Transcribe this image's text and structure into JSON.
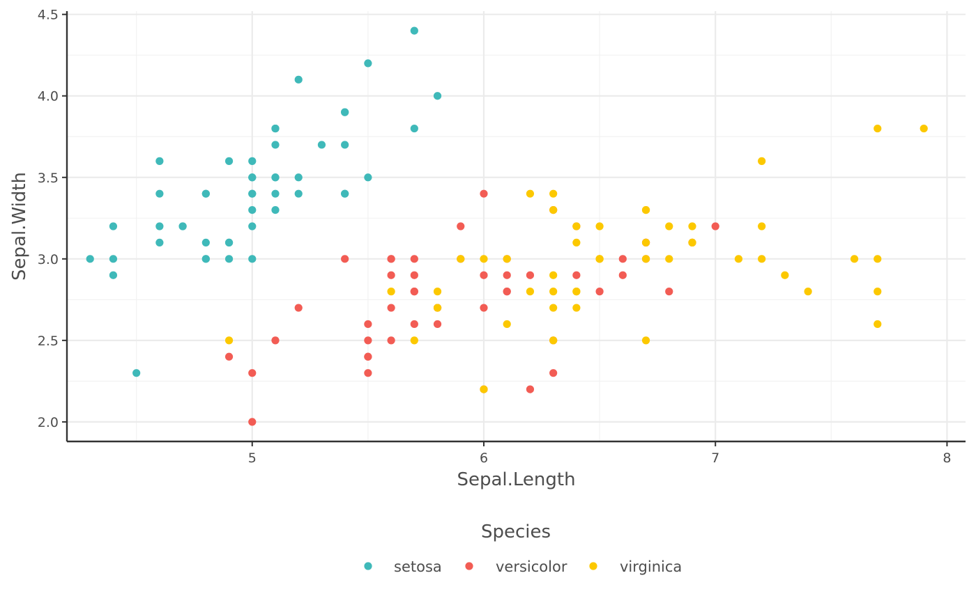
{
  "colors": {
    "setosa": "#3fb9b9",
    "versicolor": "#f25c54",
    "virginica": "#fcc800",
    "grid_major": "#ebebeb",
    "grid_minor": "#f2f2f2",
    "axis": "#333333"
  },
  "chart_data": {
    "type": "scatter",
    "title": "",
    "xlabel": "Sepal.Length",
    "ylabel": "Sepal.Width",
    "xlim": [
      4.2,
      8.08
    ],
    "ylim": [
      1.88,
      4.52
    ],
    "x_ticks": [
      5,
      6,
      7,
      8
    ],
    "x_tick_labels": [
      "5",
      "6",
      "7",
      "8"
    ],
    "y_ticks": [
      2.0,
      2.5,
      3.0,
      3.5,
      4.0,
      4.5
    ],
    "y_tick_labels": [
      "2.0",
      "2.5",
      "3.0",
      "3.5",
      "4.0",
      "4.5"
    ],
    "grid": true,
    "legend": {
      "title": "Species",
      "position": "bottom",
      "entries": [
        "setosa",
        "versicolor",
        "virginica"
      ]
    },
    "series": [
      {
        "name": "setosa",
        "color_key": "setosa",
        "points": [
          [
            5.1,
            3.5
          ],
          [
            4.9,
            3.0
          ],
          [
            4.7,
            3.2
          ],
          [
            4.6,
            3.1
          ],
          [
            5.0,
            3.6
          ],
          [
            5.4,
            3.9
          ],
          [
            4.6,
            3.4
          ],
          [
            5.0,
            3.4
          ],
          [
            4.4,
            2.9
          ],
          [
            4.9,
            3.1
          ],
          [
            5.4,
            3.7
          ],
          [
            4.8,
            3.4
          ],
          [
            4.8,
            3.0
          ],
          [
            4.3,
            3.0
          ],
          [
            5.8,
            4.0
          ],
          [
            5.7,
            4.4
          ],
          [
            5.4,
            3.9
          ],
          [
            5.1,
            3.5
          ],
          [
            5.7,
            3.8
          ],
          [
            5.1,
            3.8
          ],
          [
            5.4,
            3.4
          ],
          [
            5.1,
            3.7
          ],
          [
            4.6,
            3.6
          ],
          [
            5.1,
            3.3
          ],
          [
            4.8,
            3.4
          ],
          [
            5.0,
            3.0
          ],
          [
            5.0,
            3.4
          ],
          [
            5.2,
            3.5
          ],
          [
            5.2,
            3.4
          ],
          [
            4.7,
            3.2
          ],
          [
            4.8,
            3.1
          ],
          [
            5.4,
            3.4
          ],
          [
            5.2,
            4.1
          ],
          [
            5.5,
            4.2
          ],
          [
            4.9,
            3.1
          ],
          [
            5.0,
            3.2
          ],
          [
            5.5,
            3.5
          ],
          [
            4.9,
            3.6
          ],
          [
            4.4,
            3.0
          ],
          [
            5.1,
            3.4
          ],
          [
            5.0,
            3.5
          ],
          [
            4.5,
            2.3
          ],
          [
            4.4,
            3.2
          ],
          [
            5.0,
            3.5
          ],
          [
            5.1,
            3.8
          ],
          [
            4.8,
            3.0
          ],
          [
            5.1,
            3.8
          ],
          [
            4.6,
            3.2
          ],
          [
            5.3,
            3.7
          ],
          [
            5.0,
            3.3
          ]
        ]
      },
      {
        "name": "versicolor",
        "color_key": "versicolor",
        "points": [
          [
            7.0,
            3.2
          ],
          [
            6.4,
            3.2
          ],
          [
            6.9,
            3.1
          ],
          [
            5.5,
            2.3
          ],
          [
            6.5,
            2.8
          ],
          [
            5.7,
            2.8
          ],
          [
            6.3,
            3.3
          ],
          [
            4.9,
            2.4
          ],
          [
            6.6,
            2.9
          ],
          [
            5.2,
            2.7
          ],
          [
            5.0,
            2.0
          ],
          [
            5.9,
            3.0
          ],
          [
            6.0,
            2.2
          ],
          [
            6.1,
            2.9
          ],
          [
            5.6,
            2.9
          ],
          [
            6.7,
            3.1
          ],
          [
            5.6,
            3.0
          ],
          [
            5.8,
            2.7
          ],
          [
            6.2,
            2.2
          ],
          [
            5.6,
            2.5
          ],
          [
            5.9,
            3.2
          ],
          [
            6.1,
            2.8
          ],
          [
            6.3,
            2.5
          ],
          [
            6.1,
            2.8
          ],
          [
            6.4,
            2.9
          ],
          [
            6.6,
            3.0
          ],
          [
            6.8,
            2.8
          ],
          [
            6.7,
            3.0
          ],
          [
            6.0,
            2.9
          ],
          [
            5.7,
            2.6
          ],
          [
            5.5,
            2.4
          ],
          [
            5.5,
            2.4
          ],
          [
            5.8,
            2.7
          ],
          [
            6.0,
            2.7
          ],
          [
            5.4,
            3.0
          ],
          [
            6.0,
            3.4
          ],
          [
            6.7,
            3.1
          ],
          [
            6.3,
            2.3
          ],
          [
            5.6,
            3.0
          ],
          [
            5.5,
            2.5
          ],
          [
            5.5,
            2.6
          ],
          [
            6.1,
            3.0
          ],
          [
            5.8,
            2.6
          ],
          [
            5.0,
            2.3
          ],
          [
            5.6,
            2.7
          ],
          [
            5.7,
            3.0
          ],
          [
            5.7,
            2.9
          ],
          [
            6.2,
            2.9
          ],
          [
            5.1,
            2.5
          ],
          [
            5.7,
            2.8
          ]
        ]
      },
      {
        "name": "virginica",
        "color_key": "virginica",
        "points": [
          [
            6.3,
            3.3
          ],
          [
            5.8,
            2.7
          ],
          [
            7.1,
            3.0
          ],
          [
            6.3,
            2.9
          ],
          [
            6.5,
            3.0
          ],
          [
            7.6,
            3.0
          ],
          [
            4.9,
            2.5
          ],
          [
            7.3,
            2.9
          ],
          [
            6.7,
            2.5
          ],
          [
            7.2,
            3.6
          ],
          [
            6.5,
            3.2
          ],
          [
            6.4,
            2.7
          ],
          [
            6.8,
            3.0
          ],
          [
            5.7,
            2.5
          ],
          [
            5.8,
            2.8
          ],
          [
            6.4,
            3.2
          ],
          [
            6.5,
            3.0
          ],
          [
            7.7,
            3.8
          ],
          [
            7.7,
            2.6
          ],
          [
            6.0,
            2.2
          ],
          [
            6.9,
            3.2
          ],
          [
            5.6,
            2.8
          ],
          [
            7.7,
            2.8
          ],
          [
            6.3,
            2.7
          ],
          [
            6.7,
            3.3
          ],
          [
            7.2,
            3.2
          ],
          [
            6.2,
            2.8
          ],
          [
            6.1,
            3.0
          ],
          [
            6.4,
            2.8
          ],
          [
            7.2,
            3.0
          ],
          [
            7.4,
            2.8
          ],
          [
            7.9,
            3.8
          ],
          [
            6.4,
            2.8
          ],
          [
            6.3,
            2.8
          ],
          [
            6.1,
            2.6
          ],
          [
            7.7,
            3.0
          ],
          [
            6.3,
            3.4
          ],
          [
            6.4,
            3.1
          ],
          [
            6.0,
            3.0
          ],
          [
            6.9,
            3.1
          ],
          [
            6.7,
            3.1
          ],
          [
            6.9,
            3.1
          ],
          [
            5.8,
            2.7
          ],
          [
            6.8,
            3.2
          ],
          [
            6.7,
            3.3
          ],
          [
            6.7,
            3.0
          ],
          [
            6.3,
            2.5
          ],
          [
            6.5,
            3.0
          ],
          [
            6.2,
            3.4
          ],
          [
            5.9,
            3.0
          ]
        ]
      }
    ]
  }
}
